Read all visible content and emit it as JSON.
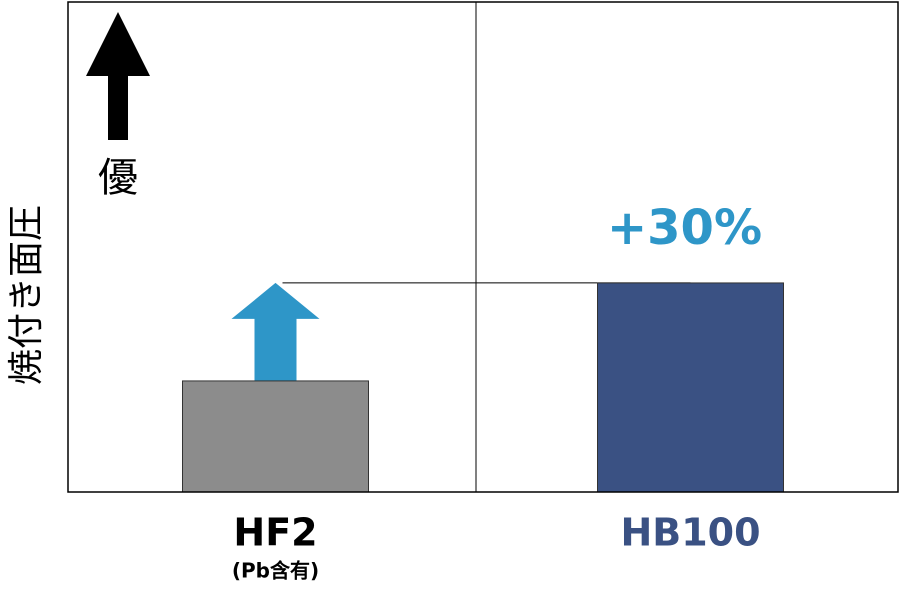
{
  "chart_data": {
    "type": "bar",
    "y_label": "焼付き面圧",
    "direction_label": "優",
    "categories": [
      "HF2",
      "HB100"
    ],
    "category_sublabels": [
      "(Pb含有)",
      null
    ],
    "category_label_colors": [
      "#000000",
      "#3a5183"
    ],
    "values": [
      100,
      130
    ],
    "colors": [
      "#8c8c8c",
      "#3a5183"
    ],
    "ylim": [
      66,
      216
    ],
    "annotation": "+30%",
    "annotation_color": "#2e96c8"
  }
}
